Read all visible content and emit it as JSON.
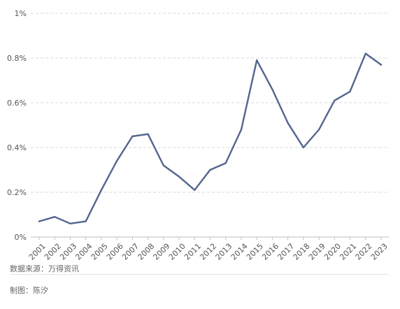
{
  "chart_data": {
    "type": "line",
    "title": "",
    "xlabel": "",
    "ylabel": "",
    "categories": [
      "2001",
      "2002",
      "2003",
      "2004",
      "2005",
      "2006",
      "2007",
      "2008",
      "2009",
      "2010",
      "2011",
      "2012",
      "2013",
      "2014",
      "2015",
      "2016",
      "2017",
      "2018",
      "2019",
      "2020",
      "2021",
      "2022",
      "2023"
    ],
    "series": [
      {
        "values": [
          0.07,
          0.09,
          0.06,
          0.07,
          0.21,
          0.34,
          0.45,
          0.46,
          0.32,
          0.27,
          0.21,
          0.3,
          0.33,
          0.48,
          0.79,
          0.66,
          0.51,
          0.4,
          0.48,
          0.61,
          0.65,
          0.82,
          0.77
        ],
        "color": "#53658e"
      }
    ],
    "y_ticks": [
      "0%",
      "0.2%",
      "0.4%",
      "0.6%",
      "0.8%",
      "1%"
    ],
    "y_tick_values": [
      0,
      0.2,
      0.4,
      0.6,
      0.8,
      1.0
    ],
    "ylim": [
      0,
      1.0
    ],
    "x_tick_rotation": "-45deg",
    "grid": "horizontal dashed",
    "legend": "none"
  },
  "footer": {
    "source": "数据来源：万得资讯",
    "credit": "制图：陈汐"
  },
  "colors": {
    "series": "#53658e",
    "grid": "#d9d9d9",
    "text": "#555555"
  }
}
